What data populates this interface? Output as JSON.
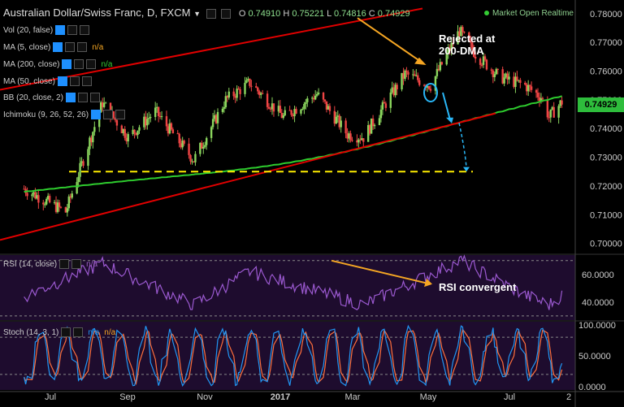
{
  "header": {
    "title": "Australian Dollar/Swiss Franc, D, FXCM",
    "ohlc_label_o": "O",
    "ohlc_o": "0.74910",
    "ohlc_label_h": "H",
    "ohlc_h": "0.75221",
    "ohlc_label_l": "L",
    "ohlc_l": "0.74816",
    "ohlc_label_c": "C",
    "ohlc_c": "0.74929",
    "status": "Market Open",
    "realtime": "Realtime"
  },
  "indicators": {
    "vol": "Vol (20, false)",
    "ma5": "MA (5, close)",
    "ma5_value": "n/a",
    "ma200": "MA (200, close)",
    "ma200_value": "n/a",
    "ma50": "MA (50, close)",
    "bb": "BB (20, close, 2)",
    "ichimoku": "Ichimoku (9, 26, 52, 26)",
    "rsi": "RSI (14, close)",
    "rsi_value": "n/a",
    "stoch": "Stoch (14, 3, 1)",
    "stoch_k": "n/a",
    "stoch_d": "n/a"
  },
  "annotations": {
    "rejected_line1": "Rejected at",
    "rejected_line2": "200-DMA",
    "rsi_note": "RSI convergent"
  },
  "price_tag": "0.74929",
  "colors": {
    "background": "#000000",
    "candle_up": "#8bd65e",
    "candle_down": "#ee4444",
    "ma200": "#2ecc2e",
    "trendline": "#e00000",
    "support": "#ffee00",
    "arrow": "#f5a623",
    "projection": "#29b6f6",
    "rsi": "#9b59d0",
    "stoch_k": "#2196f3",
    "stoch_d": "#ff6f3c",
    "panel_bg": "#1e0c2e",
    "price_tag": "#2ebd3c"
  },
  "chart_data": [
    {
      "type": "candlestick",
      "title": "Australian Dollar/Swiss Franc, D, FXCM",
      "x_ticks": [
        "Jul",
        "Sep",
        "Nov",
        "2017",
        "Mar",
        "May",
        "Jul",
        "2"
      ],
      "y_ticks": [
        "0.78000",
        "0.77000",
        "0.76000",
        "0.75000",
        "0.74000",
        "0.73000",
        "0.72000",
        "0.71000",
        "0.70000"
      ],
      "ylim": [
        0.6965,
        0.7825
      ],
      "key_points": [
        {
          "x": "2016-06-01",
          "close": 0.719
        },
        {
          "x": "2016-06-27",
          "close": 0.711
        },
        {
          "x": "2016-07-20",
          "close": 0.749
        },
        {
          "x": "2016-08-05",
          "close": 0.737
        },
        {
          "x": "2016-08-22",
          "close": 0.746
        },
        {
          "x": "2016-09-15",
          "close": 0.729
        },
        {
          "x": "2016-10-05",
          "close": 0.75
        },
        {
          "x": "2016-10-20",
          "close": 0.756
        },
        {
          "x": "2016-11-10",
          "close": 0.744
        },
        {
          "x": "2016-12-01",
          "close": 0.752
        },
        {
          "x": "2016-12-20",
          "close": 0.738
        },
        {
          "x": "2016-12-30",
          "close": 0.737
        },
        {
          "x": "2017-01-25",
          "close": 0.759
        },
        {
          "x": "2017-02-10",
          "close": 0.755
        },
        {
          "x": "2017-02-28",
          "close": 0.774
        },
        {
          "x": "2017-03-10",
          "close": 0.766
        },
        {
          "x": "2017-03-25",
          "close": 0.758
        },
        {
          "x": "2017-04-10",
          "close": 0.755
        },
        {
          "x": "2017-04-20",
          "close": 0.751
        },
        {
          "x": "2017-04-25",
          "close": 0.744
        },
        {
          "x": "2017-05-03",
          "close": 0.7493
        }
      ],
      "ma200": {
        "name": "MA (200, close)",
        "start": 0.718,
        "end": 0.751
      },
      "support_level": 0.725,
      "last_price": 0.74929
    },
    {
      "type": "line",
      "title": "RSI (14, close)",
      "y_ticks": [
        "60.0000",
        "40.0000"
      ],
      "ylim": [
        27,
        74
      ],
      "bands": [
        70,
        30
      ],
      "key_points": [
        {
          "x": "2016-06-01",
          "value": 44
        },
        {
          "x": "2016-07-20",
          "value": 68
        },
        {
          "x": "2016-09-15",
          "value": 38
        },
        {
          "x": "2016-10-20",
          "value": 62
        },
        {
          "x": "2016-12-30",
          "value": 38
        },
        {
          "x": "2017-03-01",
          "value": 70
        },
        {
          "x": "2017-04-10",
          "value": 45
        },
        {
          "x": "2017-04-25",
          "value": 38
        },
        {
          "x": "2017-05-03",
          "value": 45
        }
      ]
    },
    {
      "type": "line",
      "title": "Stoch (14, 3, 1)",
      "y_ticks": [
        "100.0000",
        "50.0000",
        "0.0000"
      ],
      "ylim": [
        -5,
        105
      ],
      "bands": [
        80,
        20
      ]
    }
  ]
}
